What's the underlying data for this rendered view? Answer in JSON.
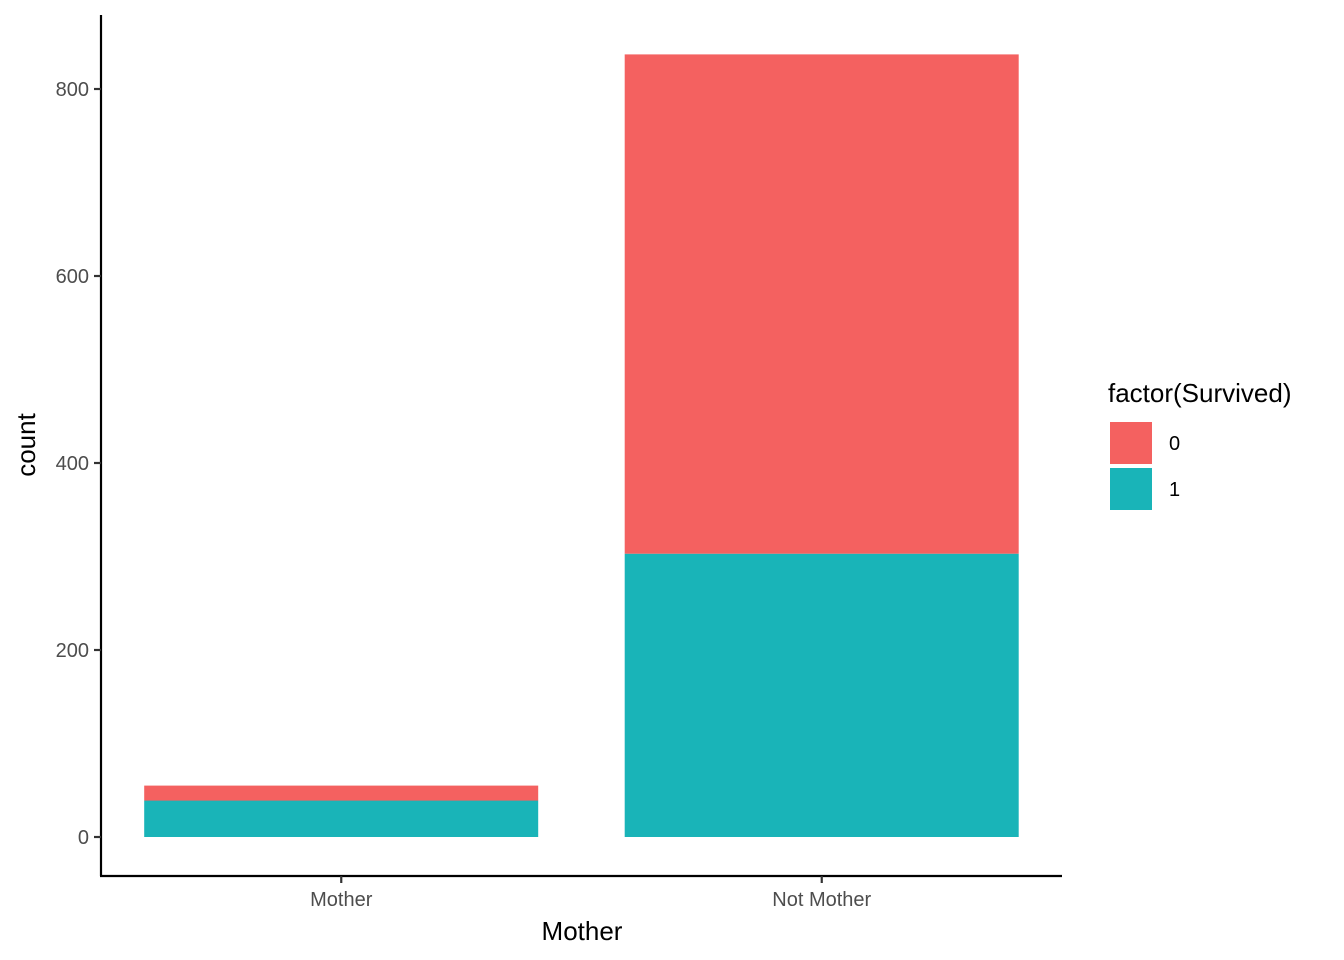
{
  "chart_data": {
    "type": "bar",
    "stacked": true,
    "categories": [
      "Mother",
      "Not Mother"
    ],
    "series": [
      {
        "name": "0",
        "color": "#F46160",
        "values": [
          16,
          534
        ]
      },
      {
        "name": "1",
        "color": "#19B4B8",
        "values": [
          39,
          303
        ]
      }
    ],
    "xlabel": "Mother",
    "ylabel": "count",
    "yticks": [
      0,
      200,
      400,
      600,
      800
    ],
    "ylim": [
      0,
      837
    ],
    "grid": false,
    "legend": {
      "title": "factor(Survived)",
      "position": "right"
    }
  }
}
